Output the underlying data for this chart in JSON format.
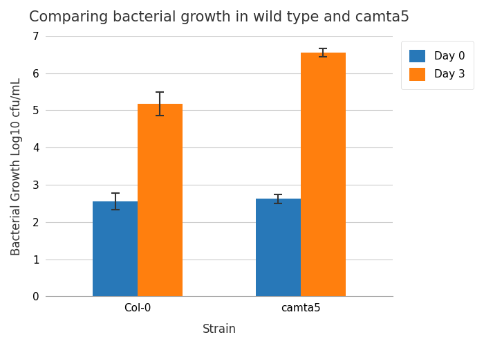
{
  "title": "Comparing bacterial growth in wild type and camta5",
  "xlabel": "Strain",
  "ylabel": "Bacterial Growth Log10 cfu/mL",
  "categories": [
    "Col-0",
    "camta5"
  ],
  "series": [
    {
      "name": "Day 0",
      "values": [
        2.55,
        2.62
      ],
      "errors": [
        0.22,
        0.12
      ],
      "color": "#2878b8"
    },
    {
      "name": "Day 3",
      "values": [
        5.18,
        6.55
      ],
      "errors": [
        0.32,
        0.12
      ],
      "color": "#ff7f0e"
    }
  ],
  "ylim": [
    0,
    7
  ],
  "yticks": [
    0,
    1,
    2,
    3,
    4,
    5,
    6,
    7
  ],
  "bar_width": 0.22,
  "group_centers": [
    0.35,
    1.15
  ],
  "background_color": "#ffffff",
  "title_fontsize": 15,
  "axis_label_fontsize": 12,
  "tick_fontsize": 11,
  "legend_fontsize": 11
}
